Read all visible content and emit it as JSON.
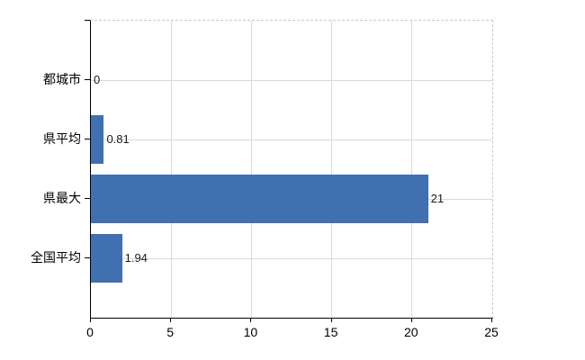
{
  "chart_data": {
    "type": "bar",
    "orientation": "horizontal",
    "title": "",
    "categories": [
      "都城市",
      "県平均",
      "県最大",
      "全国平均"
    ],
    "values": [
      0,
      0.81,
      21,
      1.94
    ],
    "value_labels": [
      "0",
      "0.81",
      "21",
      "1.94"
    ],
    "x_ticks": [
      "0",
      "5",
      "10",
      "15",
      "20",
      "25"
    ],
    "x_tick_values": [
      0,
      5,
      10,
      15,
      20,
      25
    ],
    "xlim": [
      0,
      25
    ],
    "grid": true,
    "legend": "none",
    "colors": {
      "bar": "#4070b0",
      "grid": "#d9d9d9",
      "border_dashed": "#c9c9c9",
      "axis": "#000000",
      "text": "#000000",
      "background": "#ffffff"
    }
  }
}
